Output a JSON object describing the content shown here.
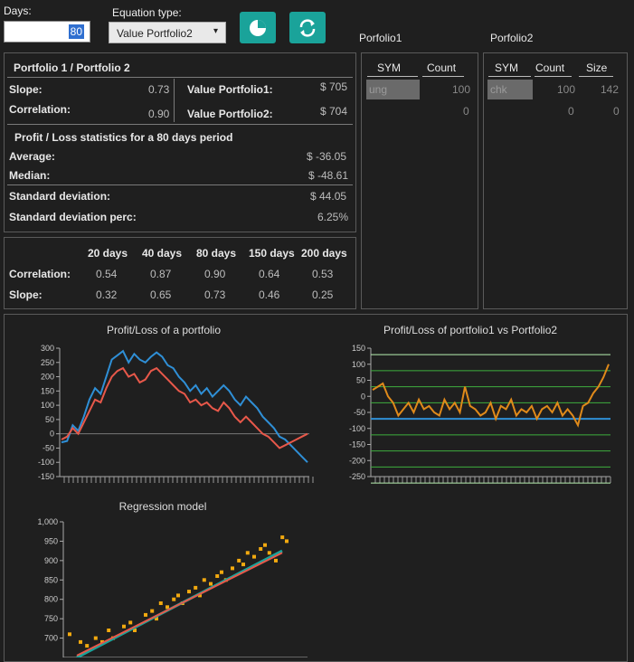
{
  "toolbar": {
    "days_label": "Days:",
    "days_value": "80",
    "equation_label": "Equation type:",
    "equation_value": "Value Portfolio2",
    "pie_icon": "pie-chart-icon",
    "refresh_icon": "refresh-icon"
  },
  "portfolio1_title": "Porfolio1",
  "portfolio2_title": "Porfolio2",
  "stats": {
    "header": "Portfolio 1 / Portfolio 2",
    "slope_label": "Slope:",
    "slope_value": "0.73",
    "correlation_label": "Correlation:",
    "correlation_value": "0.90",
    "value_p1_label": "Value Portfolio1:",
    "value_p1": "$ 705",
    "value_p2_label": "Value Portfolio2:",
    "value_p2": "$ 704",
    "pl_header": "Profit / Loss statistics for a 80 days period",
    "average_label": "Average:",
    "average_value": "$ -36.05",
    "median_label": "Median:",
    "median_value": "$ -48.61",
    "std_label": "Standard deviation:",
    "std_value": "$ 44.05",
    "stdp_label": "Standard deviation perc:",
    "stdp_value": "6.25%"
  },
  "period_table": {
    "headers": [
      "20 days",
      "40 days",
      "80 days",
      "150 days",
      "200 days"
    ],
    "rows": [
      {
        "label": "Correlation:",
        "values": [
          "0.54",
          "0.87",
          "0.90",
          "0.64",
          "0.53"
        ]
      },
      {
        "label": "Slope:",
        "values": [
          "0.32",
          "0.65",
          "0.73",
          "0.46",
          "0.25"
        ]
      }
    ]
  },
  "p1_table": {
    "headers": [
      "SYM",
      "Count"
    ],
    "rows": [
      [
        "ung",
        "100"
      ],
      [
        "",
        "0"
      ]
    ]
  },
  "p2_table": {
    "headers": [
      "SYM",
      "Count",
      "Size"
    ],
    "rows": [
      [
        "chk",
        "100",
        "142"
      ],
      [
        "",
        "0",
        "0"
      ]
    ]
  },
  "colors": {
    "accent": "#1aa39a",
    "blue": "#2f8fd6",
    "red": "#e8584a",
    "orange": "#e08a1a",
    "green": "#3fbf3f"
  },
  "chart_data": [
    {
      "type": "line",
      "title": "Profit/Loss of a portfolio",
      "ylim": [
        -150,
        300
      ],
      "yticks": [
        300,
        250,
        200,
        150,
        100,
        50,
        0,
        -50,
        -100,
        -150
      ],
      "series": [
        {
          "values": [
            -30,
            -25,
            30,
            10,
            60,
            120,
            160,
            140,
            200,
            260,
            275,
            290,
            250,
            280,
            260,
            250,
            270,
            285,
            270,
            240,
            230,
            200,
            180,
            150,
            170,
            140,
            160,
            130,
            150,
            170,
            150,
            120,
            100,
            130,
            110,
            90,
            60,
            40,
            20,
            -10,
            -20,
            -40,
            -60,
            -80,
            -100
          ]
        },
        {
          "values": [
            -20,
            -10,
            20,
            0,
            40,
            80,
            120,
            110,
            160,
            200,
            220,
            230,
            200,
            210,
            180,
            190,
            220,
            230,
            210,
            190,
            170,
            150,
            140,
            110,
            120,
            100,
            110,
            90,
            80,
            110,
            90,
            60,
            40,
            60,
            40,
            20,
            0,
            -10,
            -30,
            -50,
            -40,
            -30,
            -20,
            -10,
            0
          ]
        }
      ]
    },
    {
      "type": "line",
      "title": "Profit/Loss of portfolio1 vs Portfolio2",
      "ylim": [
        -250,
        150
      ],
      "yticks": [
        150,
        100,
        50,
        0,
        -50,
        -100,
        -150,
        -200,
        -250
      ],
      "series": [
        {
          "values": [
            20,
            30,
            40,
            0,
            -20,
            -60,
            -40,
            -20,
            -50,
            -10,
            -40,
            -30,
            -50,
            -60,
            -10,
            -40,
            -20,
            -50,
            30,
            -30,
            -40,
            -60,
            -50,
            -20,
            -70,
            -30,
            -40,
            -10,
            -60,
            -40,
            -50,
            -30,
            -70,
            -40,
            -30,
            -50,
            -20,
            -60,
            -40,
            -60,
            -90,
            -30,
            -20,
            10,
            30,
            60,
            100
          ]
        }
      ]
    },
    {
      "type": "scatter",
      "title": "Regression model",
      "ylim": [
        650,
        1000
      ],
      "yticks": [
        1000,
        950,
        900,
        850,
        800,
        750,
        700
      ],
      "points": [
        [
          0,
          710
        ],
        [
          5,
          690
        ],
        [
          8,
          680
        ],
        [
          12,
          700
        ],
        [
          15,
          690
        ],
        [
          18,
          720
        ],
        [
          20,
          700
        ],
        [
          25,
          730
        ],
        [
          28,
          740
        ],
        [
          30,
          720
        ],
        [
          35,
          760
        ],
        [
          38,
          770
        ],
        [
          40,
          750
        ],
        [
          42,
          790
        ],
        [
          45,
          780
        ],
        [
          48,
          800
        ],
        [
          50,
          810
        ],
        [
          52,
          790
        ],
        [
          55,
          820
        ],
        [
          58,
          830
        ],
        [
          60,
          810
        ],
        [
          62,
          850
        ],
        [
          65,
          840
        ],
        [
          68,
          860
        ],
        [
          70,
          870
        ],
        [
          72,
          850
        ],
        [
          75,
          880
        ],
        [
          78,
          900
        ],
        [
          80,
          890
        ],
        [
          82,
          920
        ],
        [
          85,
          910
        ],
        [
          88,
          930
        ],
        [
          90,
          940
        ],
        [
          92,
          920
        ],
        [
          95,
          900
        ],
        [
          98,
          960
        ],
        [
          100,
          950
        ]
      ]
    }
  ]
}
